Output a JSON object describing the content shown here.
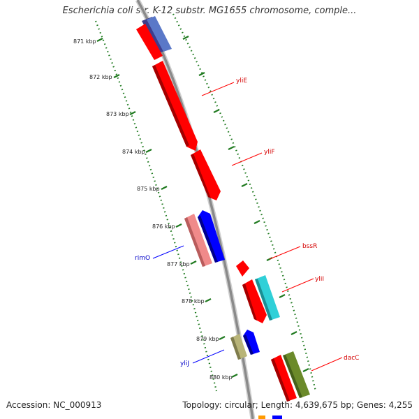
{
  "title": "Escherichia coli str. K-12 substr. MG1655 chromosome, comple...",
  "footer": {
    "accession": "Accession: NC_000913",
    "summary": "Topology: circular; Length: 4,639,675 bp; Genes: 4,255"
  },
  "scale_ticks": [
    "871 kbp",
    "872 kbp",
    "873 kbp",
    "874 kbp",
    "875 kbp",
    "876 kbp",
    "877 kbp",
    "878 kbp",
    "879 kbp",
    "880 kbp"
  ],
  "genes": [
    {
      "name": "yliE",
      "strand": "forward",
      "color": "#ff0000"
    },
    {
      "name": "yliF",
      "strand": "forward",
      "color": "#ff0000"
    },
    {
      "name": "bssR",
      "strand": "forward",
      "color": "#ff0000"
    },
    {
      "name": "yliI",
      "strand": "forward",
      "color": "#ff0000"
    },
    {
      "name": "dacC",
      "strand": "forward",
      "color": "#ff0000"
    },
    {
      "name": "rimO",
      "strand": "reverse",
      "color": "#0000ff"
    },
    {
      "name": "yliJ",
      "strand": "reverse",
      "color": "#0000ff"
    }
  ],
  "colors": {
    "cds": "#ff0000",
    "gene": "#0000ff",
    "rna_pink": "#f08a8a",
    "cyan": "#2fd0d8",
    "olive": "#6b8a2a",
    "khaki": "#b8b478",
    "backbone": "#8c8c8c",
    "tick": "#1f7a1f"
  }
}
